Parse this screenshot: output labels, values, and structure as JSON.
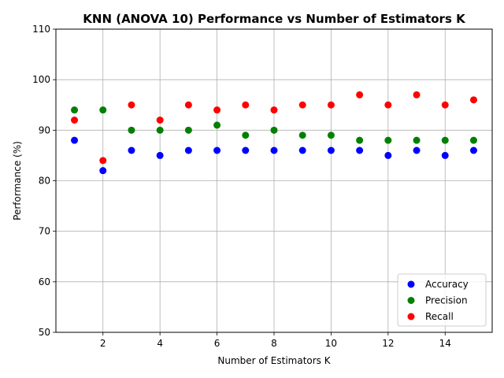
{
  "chart_data": {
    "type": "scatter",
    "title": "KNN (ANOVA 10) Performance vs Number of Estimators K",
    "xlabel": "Number of Estimators K",
    "ylabel": "Performance (%)",
    "xlim": [
      0.35,
      15.65
    ],
    "ylim": [
      50,
      110
    ],
    "xticks": [
      2,
      4,
      6,
      8,
      10,
      12,
      14
    ],
    "yticks": [
      50,
      60,
      70,
      80,
      90,
      100,
      110
    ],
    "grid": true,
    "legend_position": "bottom-right",
    "x": [
      1,
      2,
      3,
      4,
      5,
      6,
      7,
      8,
      9,
      10,
      11,
      12,
      13,
      14,
      15
    ],
    "series": [
      {
        "name": "Accuracy",
        "color": "#0000ff",
        "values": [
          88,
          82,
          86,
          85,
          86,
          86,
          86,
          86,
          86,
          86,
          86,
          85,
          86,
          85,
          86
        ]
      },
      {
        "name": "Precision",
        "color": "#008000",
        "values": [
          94,
          94,
          90,
          90,
          90,
          91,
          89,
          90,
          89,
          89,
          88,
          88,
          88,
          88,
          88
        ]
      },
      {
        "name": "Recall",
        "color": "#ff0000",
        "values": [
          92,
          84,
          95,
          92,
          95,
          94,
          95,
          94,
          95,
          95,
          97,
          95,
          97,
          95,
          96
        ]
      }
    ]
  }
}
